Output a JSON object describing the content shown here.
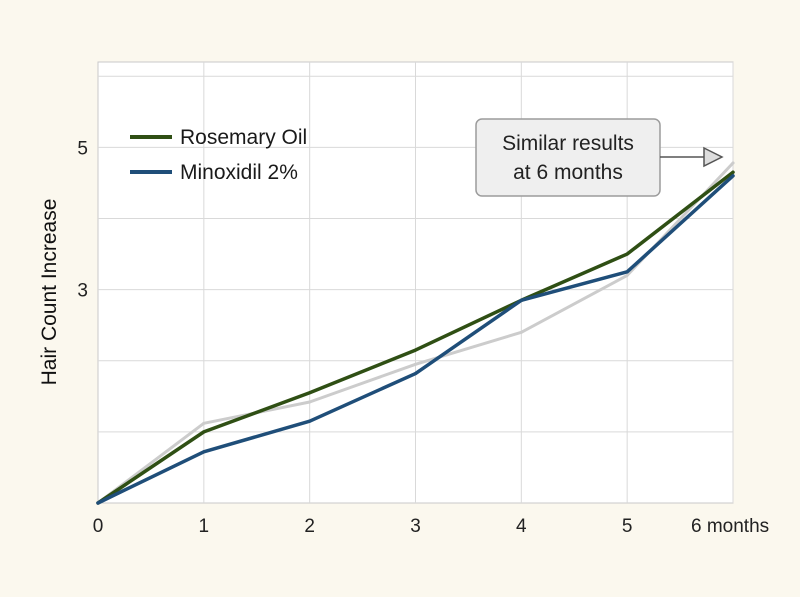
{
  "chart_data": {
    "type": "line",
    "title": "",
    "xlabel": "",
    "ylabel": "Hair Count Increase",
    "x": [
      0,
      1,
      2,
      3,
      4,
      5,
      6
    ],
    "x_tick_labels": [
      "0",
      "1",
      "2",
      "3",
      "4",
      "5",
      "6 months"
    ],
    "y_tick_labels": [
      "3",
      "5"
    ],
    "y_ticks": [
      3,
      5
    ],
    "xlim": [
      0,
      6
    ],
    "ylim": [
      0,
      6.2
    ],
    "grid": true,
    "legend_position": "top-left",
    "series": [
      {
        "name": "Rosemary Oil",
        "color": "#2f4f14",
        "values": [
          0,
          1.0,
          1.55,
          2.15,
          2.85,
          3.5,
          4.65
        ]
      },
      {
        "name": "Minoxidil 2%",
        "color": "#1f4e79",
        "values": [
          0,
          0.72,
          1.15,
          1.82,
          2.85,
          3.25,
          4.6
        ]
      },
      {
        "name": "",
        "color": "#cccccc",
        "values": [
          0,
          1.12,
          1.42,
          1.95,
          2.4,
          3.2,
          4.78
        ]
      }
    ],
    "annotation": {
      "text_lines": [
        "Similar results",
        "at 6 months"
      ],
      "x": 6,
      "y": 4.78
    }
  }
}
